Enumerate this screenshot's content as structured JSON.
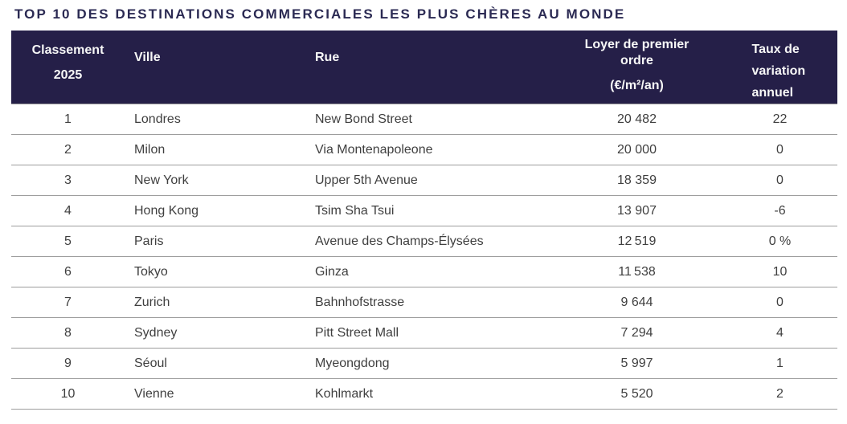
{
  "title": "TOP 10 DES DESTINATIONS COMMERCIALES LES PLUS CHÈRES AU MONDE",
  "colors": {
    "header_background": "#251f48",
    "header_text": "#f7f7f7",
    "title_text": "#2b2a53",
    "body_text": "#3f3f3f",
    "divider": "#9d9d9d"
  },
  "table": {
    "columns": {
      "rank_line1": "Classement",
      "rank_line2": "2025",
      "ville": "Ville",
      "rue": "Rue",
      "loyer_main": "Loyer de premier ordre",
      "loyer_unit": "(€/m²/an)",
      "variation": "Taux de variation annuel"
    },
    "rows": [
      {
        "rank": "1",
        "ville": "Londres",
        "rue": "New Bond Street",
        "loyer": "20 482",
        "variation": "22"
      },
      {
        "rank": "2",
        "ville": "Milon",
        "rue": "Via Montenapoleone",
        "loyer": "20 000",
        "variation": "0"
      },
      {
        "rank": "3",
        "ville": "New York",
        "rue": "Upper 5th Avenue",
        "loyer": "18 359",
        "variation": "0"
      },
      {
        "rank": "4",
        "ville": "Hong Kong",
        "rue": "Tsim Sha Tsui",
        "loyer": "13 907",
        "variation": "-6"
      },
      {
        "rank": "5",
        "ville": "Paris",
        "rue": "Avenue des Champs-Élysées",
        "loyer": "12 519",
        "variation": "0 %"
      },
      {
        "rank": "6",
        "ville": "Tokyo",
        "rue": "Ginza",
        "loyer": "11 538",
        "variation": "10"
      },
      {
        "rank": "7",
        "ville": "Zurich",
        "rue": "Bahnhofstrasse",
        "loyer": "9 644",
        "variation": "0"
      },
      {
        "rank": "8",
        "ville": "Sydney",
        "rue": "Pitt Street Mall",
        "loyer": "7 294",
        "variation": "4"
      },
      {
        "rank": "9",
        "ville": "Séoul",
        "rue": "Myeongdong",
        "loyer": "5 997",
        "variation": "1"
      },
      {
        "rank": "10",
        "ville": "Vienne",
        "rue": "Kohlmarkt",
        "loyer": "5 520",
        "variation": "2"
      }
    ]
  },
  "chart_data": {
    "type": "table",
    "title": "TOP 10 DES DESTINATIONS COMMERCIALES LES PLUS CHÈRES AU MONDE",
    "columns": [
      "Classement 2025",
      "Ville",
      "Rue",
      "Loyer de premier ordre (€/m²/an)",
      "Taux de variation annuel"
    ],
    "rows": [
      [
        1,
        "Londres",
        "New Bond Street",
        20482,
        22
      ],
      [
        2,
        "Milon",
        "Via Montenapoleone",
        20000,
        0
      ],
      [
        3,
        "New York",
        "Upper 5th Avenue",
        18359,
        0
      ],
      [
        4,
        "Hong Kong",
        "Tsim Sha Tsui",
        13907,
        -6
      ],
      [
        5,
        "Paris",
        "Avenue des Champs-Élysées",
        12519,
        0
      ],
      [
        6,
        "Tokyo",
        "Ginza",
        11538,
        10
      ],
      [
        7,
        "Zurich",
        "Bahnhofstrasse",
        9644,
        0
      ],
      [
        8,
        "Sydney",
        "Pitt Street Mall",
        7294,
        4
      ],
      [
        9,
        "Séoul",
        "Myeongdong",
        5997,
        1
      ],
      [
        10,
        "Vienne",
        "Kohlmarkt",
        5520,
        2
      ]
    ]
  }
}
